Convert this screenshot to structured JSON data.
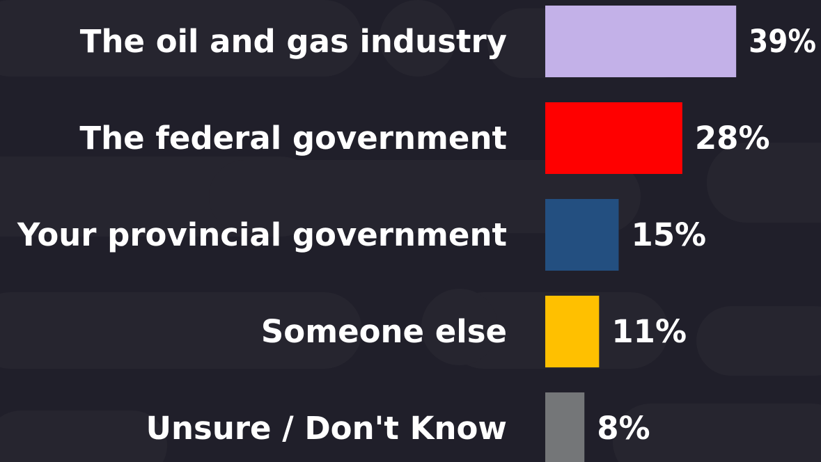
{
  "chart_data": {
    "type": "bar",
    "orientation": "horizontal",
    "categories": [
      "The oil and gas industry",
      "The federal government",
      "Your provincial government",
      "Someone else",
      "Unsure / Don't Know"
    ],
    "values": [
      39,
      28,
      15,
      11,
      8
    ],
    "value_labels": [
      "39%",
      "28%",
      "15%",
      "11%",
      "8%"
    ],
    "colors": [
      "#c3b1e8",
      "#ff0000",
      "#234f80",
      "#ffc000",
      "#747678"
    ],
    "xlim": [
      0,
      50
    ],
    "grid": false,
    "legend": "none"
  },
  "background_color": "#201f2a",
  "text_color": "#ffffff"
}
